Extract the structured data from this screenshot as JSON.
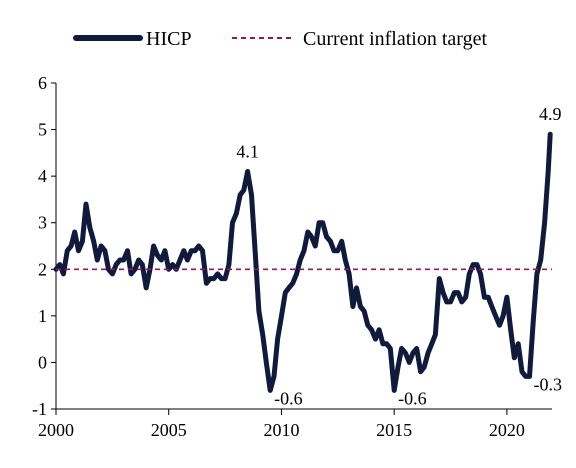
{
  "colors": {
    "hicp_line": "#0f1a3c",
    "target_line": "#8b1a5a",
    "axis": "#000000"
  },
  "chart_data": {
    "type": "line",
    "title": "",
    "xlabel": "",
    "ylabel": "",
    "xlim": [
      2000,
      2022
    ],
    "ylim": [
      -1,
      6
    ],
    "x_ticks": [
      2000,
      2005,
      2010,
      2015,
      2020
    ],
    "y_ticks": [
      -1,
      0,
      1,
      2,
      3,
      4,
      5,
      6
    ],
    "x_tick_labels": [
      "2000",
      "2005",
      "2010",
      "2015",
      "2020"
    ],
    "y_tick_labels": [
      "-1",
      "0",
      "1",
      "2",
      "3",
      "4",
      "5",
      "6"
    ],
    "legend": {
      "position": "top",
      "entries": [
        "HICP",
        "Current inflation target"
      ]
    },
    "grid": false,
    "series": [
      {
        "name": "HICP",
        "style": "solid",
        "points": [
          [
            2000.0,
            2.0
          ],
          [
            2000.17,
            2.1
          ],
          [
            2000.33,
            1.9
          ],
          [
            2000.5,
            2.4
          ],
          [
            2000.67,
            2.5
          ],
          [
            2000.83,
            2.8
          ],
          [
            2001.0,
            2.4
          ],
          [
            2001.17,
            2.6
          ],
          [
            2001.33,
            3.4
          ],
          [
            2001.5,
            2.9
          ],
          [
            2001.67,
            2.6
          ],
          [
            2001.83,
            2.2
          ],
          [
            2002.0,
            2.5
          ],
          [
            2002.17,
            2.4
          ],
          [
            2002.33,
            2.0
          ],
          [
            2002.5,
            1.9
          ],
          [
            2002.67,
            2.1
          ],
          [
            2002.83,
            2.2
          ],
          [
            2003.0,
            2.2
          ],
          [
            2003.17,
            2.4
          ],
          [
            2003.33,
            1.9
          ],
          [
            2003.5,
            2.0
          ],
          [
            2003.67,
            2.2
          ],
          [
            2003.83,
            2.1
          ],
          [
            2004.0,
            1.6
          ],
          [
            2004.17,
            2.0
          ],
          [
            2004.33,
            2.5
          ],
          [
            2004.5,
            2.3
          ],
          [
            2004.67,
            2.2
          ],
          [
            2004.83,
            2.4
          ],
          [
            2005.0,
            2.0
          ],
          [
            2005.17,
            2.1
          ],
          [
            2005.33,
            2.0
          ],
          [
            2005.5,
            2.2
          ],
          [
            2005.67,
            2.4
          ],
          [
            2005.83,
            2.2
          ],
          [
            2006.0,
            2.4
          ],
          [
            2006.17,
            2.4
          ],
          [
            2006.33,
            2.5
          ],
          [
            2006.5,
            2.4
          ],
          [
            2006.67,
            1.7
          ],
          [
            2006.83,
            1.8
          ],
          [
            2007.0,
            1.8
          ],
          [
            2007.17,
            1.9
          ],
          [
            2007.33,
            1.8
          ],
          [
            2007.5,
            1.8
          ],
          [
            2007.67,
            2.1
          ],
          [
            2007.83,
            3.0
          ],
          [
            2008.0,
            3.2
          ],
          [
            2008.17,
            3.6
          ],
          [
            2008.33,
            3.7
          ],
          [
            2008.5,
            4.1
          ],
          [
            2008.67,
            3.6
          ],
          [
            2008.83,
            2.4
          ],
          [
            2009.0,
            1.1
          ],
          [
            2009.17,
            0.6
          ],
          [
            2009.33,
            0.0
          ],
          [
            2009.5,
            -0.6
          ],
          [
            2009.67,
            -0.3
          ],
          [
            2009.83,
            0.5
          ],
          [
            2010.0,
            1.0
          ],
          [
            2010.17,
            1.5
          ],
          [
            2010.33,
            1.6
          ],
          [
            2010.5,
            1.7
          ],
          [
            2010.67,
            1.9
          ],
          [
            2010.83,
            2.2
          ],
          [
            2011.0,
            2.4
          ],
          [
            2011.17,
            2.8
          ],
          [
            2011.33,
            2.7
          ],
          [
            2011.5,
            2.5
          ],
          [
            2011.67,
            3.0
          ],
          [
            2011.83,
            3.0
          ],
          [
            2012.0,
            2.7
          ],
          [
            2012.17,
            2.6
          ],
          [
            2012.33,
            2.4
          ],
          [
            2012.5,
            2.4
          ],
          [
            2012.67,
            2.6
          ],
          [
            2012.83,
            2.2
          ],
          [
            2013.0,
            1.9
          ],
          [
            2013.17,
            1.2
          ],
          [
            2013.33,
            1.6
          ],
          [
            2013.5,
            1.2
          ],
          [
            2013.67,
            1.1
          ],
          [
            2013.83,
            0.8
          ],
          [
            2014.0,
            0.7
          ],
          [
            2014.17,
            0.5
          ],
          [
            2014.33,
            0.7
          ],
          [
            2014.5,
            0.4
          ],
          [
            2014.67,
            0.4
          ],
          [
            2014.83,
            0.3
          ],
          [
            2015.0,
            -0.6
          ],
          [
            2015.17,
            -0.1
          ],
          [
            2015.33,
            0.3
          ],
          [
            2015.5,
            0.2
          ],
          [
            2015.67,
            0.0
          ],
          [
            2015.83,
            0.2
          ],
          [
            2016.0,
            0.3
          ],
          [
            2016.17,
            -0.2
          ],
          [
            2016.33,
            -0.1
          ],
          [
            2016.5,
            0.2
          ],
          [
            2016.67,
            0.4
          ],
          [
            2016.83,
            0.6
          ],
          [
            2017.0,
            1.8
          ],
          [
            2017.17,
            1.5
          ],
          [
            2017.33,
            1.3
          ],
          [
            2017.5,
            1.3
          ],
          [
            2017.67,
            1.5
          ],
          [
            2017.83,
            1.5
          ],
          [
            2018.0,
            1.3
          ],
          [
            2018.17,
            1.4
          ],
          [
            2018.33,
            1.9
          ],
          [
            2018.5,
            2.1
          ],
          [
            2018.67,
            2.1
          ],
          [
            2018.83,
            1.9
          ],
          [
            2019.0,
            1.4
          ],
          [
            2019.17,
            1.4
          ],
          [
            2019.33,
            1.2
          ],
          [
            2019.5,
            1.0
          ],
          [
            2019.67,
            0.8
          ],
          [
            2019.83,
            1.0
          ],
          [
            2020.0,
            1.4
          ],
          [
            2020.17,
            0.7
          ],
          [
            2020.33,
            0.1
          ],
          [
            2020.5,
            0.4
          ],
          [
            2020.67,
            -0.2
          ],
          [
            2020.83,
            -0.3
          ],
          [
            2021.0,
            -0.3
          ],
          [
            2021.17,
            0.9
          ],
          [
            2021.33,
            1.9
          ],
          [
            2021.5,
            2.2
          ],
          [
            2021.67,
            3.0
          ],
          [
            2021.83,
            4.1
          ],
          [
            2021.92,
            4.9
          ]
        ]
      },
      {
        "name": "Current inflation target",
        "style": "dashed",
        "points": [
          [
            2000.0,
            2.0
          ],
          [
            2022.0,
            2.0
          ]
        ]
      }
    ],
    "annotations": [
      {
        "text": "4.1",
        "x": 2008.5,
        "y": 4.1,
        "anchor": "above"
      },
      {
        "text": "-0.6",
        "x": 2009.5,
        "y": -0.6,
        "anchor": "right"
      },
      {
        "text": "-0.6",
        "x": 2015.0,
        "y": -0.6,
        "anchor": "right"
      },
      {
        "text": "-0.3",
        "x": 2021.0,
        "y": -0.3,
        "anchor": "right"
      },
      {
        "text": "4.9",
        "x": 2021.92,
        "y": 4.9,
        "anchor": "above"
      }
    ]
  }
}
